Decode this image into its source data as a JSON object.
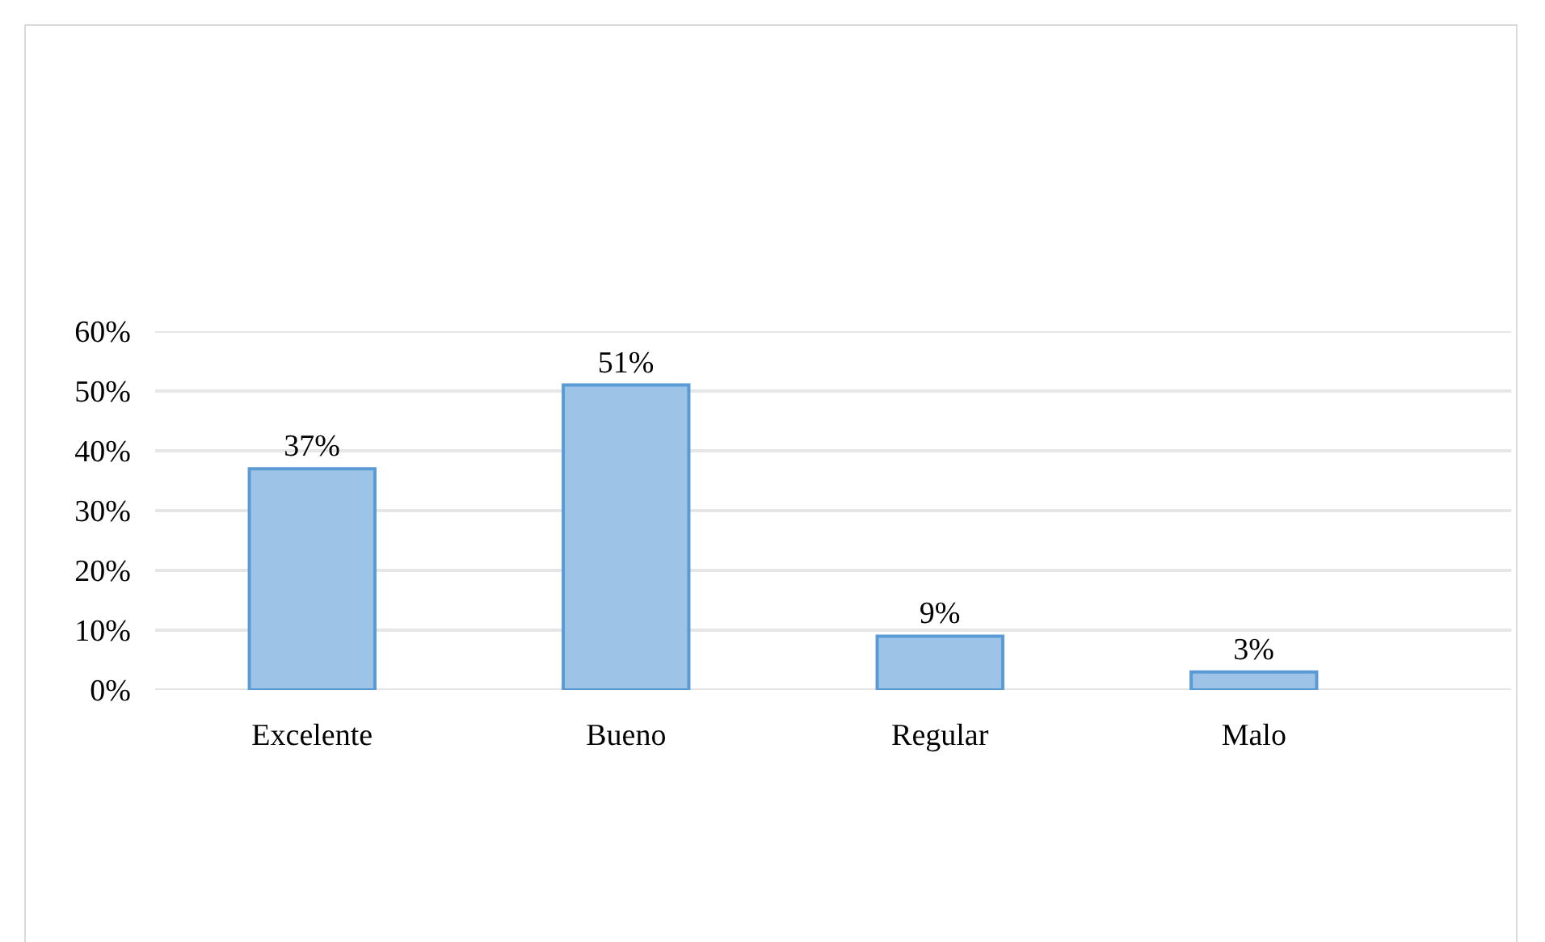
{
  "chart_data": {
    "type": "bar",
    "categories": [
      "Excelente",
      "Bueno",
      "Regular",
      "Malo"
    ],
    "values": [
      37,
      51,
      9,
      3
    ],
    "value_labels": [
      "37%",
      "51%",
      "9%",
      "3%"
    ],
    "color": "#9dc3e6",
    "ylim": [
      0,
      60
    ],
    "yticks": [
      {
        "value": 0,
        "label": "0%"
      },
      {
        "value": 10,
        "label": "10%"
      },
      {
        "value": 20,
        "label": "20%"
      },
      {
        "value": 30,
        "label": "30%"
      },
      {
        "value": 40,
        "label": "40%"
      },
      {
        "value": 50,
        "label": "50%"
      },
      {
        "value": 60,
        "label": "60%"
      }
    ],
    "grid": "y"
  }
}
